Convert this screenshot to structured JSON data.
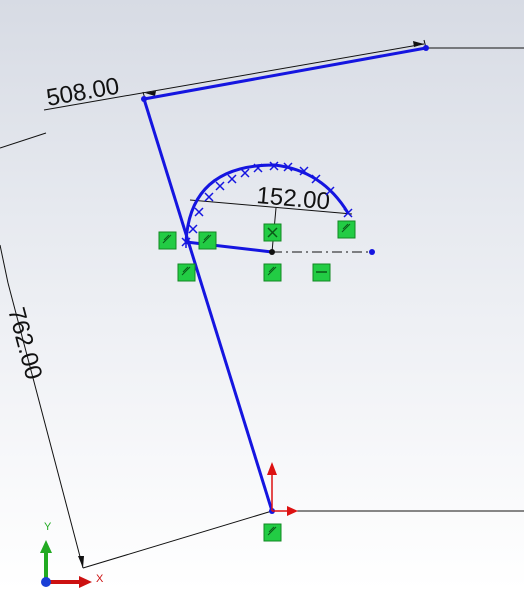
{
  "app": "SolidWorks Sketch",
  "dimensions": {
    "top": "508.00",
    "left": "762.00",
    "arc": "152.00"
  },
  "triad": {
    "x_label": "X",
    "y_label": "Y"
  },
  "colors": {
    "sketch_line": "#1515e0",
    "dimension": "#111111",
    "relation_fill": "#22cc44",
    "axis_x": "#cc1111",
    "axis_y": "#22aa22",
    "axis_z": "#1a3fd6"
  },
  "relations": [
    "coincident",
    "coincident",
    "coincident",
    "coincident",
    "coincident",
    "coincident",
    "horizontal",
    "coincident"
  ]
}
